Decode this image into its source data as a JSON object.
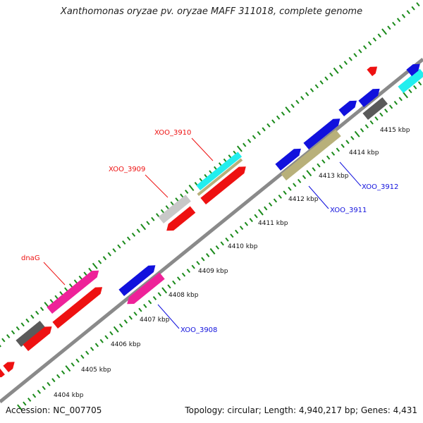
{
  "title": "Xanthomonas oryzae pv. oryzae MAFF 311018, complete genome",
  "footer": {
    "accession": "Accession: NC_007705",
    "info": "Topology: circular; Length: 4,940,217 bp; Genes: 4,431"
  },
  "colors": {
    "backbone": "#8a8a8a",
    "tick": "#1a8a1a",
    "red": "#ee1111",
    "blue": "#1111dd",
    "magenta": "#ee2299",
    "dark_gray": "#5a5a5a",
    "light_gray": "#c8c8c8",
    "cyan": "#22eeee",
    "olive": "#b8b07a",
    "label_red": "#ee1111",
    "label_blue": "#1111dd"
  },
  "ticks": [
    {
      "label": "4404 kbp"
    },
    {
      "label": "4405 kbp"
    },
    {
      "label": "4406 kbp"
    },
    {
      "label": "4407 kbp"
    },
    {
      "label": "4408 kbp"
    },
    {
      "label": "4409 kbp"
    },
    {
      "label": "4410 kbp"
    },
    {
      "label": "4411 kbp"
    },
    {
      "label": "4412 kbp"
    },
    {
      "label": "4413 kbp"
    },
    {
      "label": "4414 kbp"
    },
    {
      "label": "4415 kbp"
    }
  ],
  "features": [
    {
      "color": "red"
    },
    {
      "color": "red"
    },
    {
      "color": "dark_gray"
    },
    {
      "color": "red"
    },
    {
      "color": "magenta"
    },
    {
      "color": "red"
    },
    {
      "color": "blue"
    },
    {
      "color": "magenta"
    },
    {
      "color": "light_gray"
    },
    {
      "color": "red"
    },
    {
      "color": "cyan"
    },
    {
      "color": "olive"
    },
    {
      "color": "red"
    },
    {
      "color": "blue"
    },
    {
      "color": "olive"
    },
    {
      "color": "blue"
    },
    {
      "color": "blue"
    },
    {
      "color": "blue"
    },
    {
      "color": "dark_gray"
    },
    {
      "color": "red"
    },
    {
      "color": "cyan"
    },
    {
      "color": "blue"
    }
  ],
  "gene_labels": [
    {
      "text": "dnaG",
      "color": "label_red"
    },
    {
      "text": "XOO_3909",
      "color": "label_red"
    },
    {
      "text": "XOO_3910",
      "color": "label_red"
    },
    {
      "text": "XOO_3908",
      "color": "label_blue"
    },
    {
      "text": "XOO_3911",
      "color": "label_blue"
    },
    {
      "text": "XOO_3912",
      "color": "label_blue"
    }
  ]
}
